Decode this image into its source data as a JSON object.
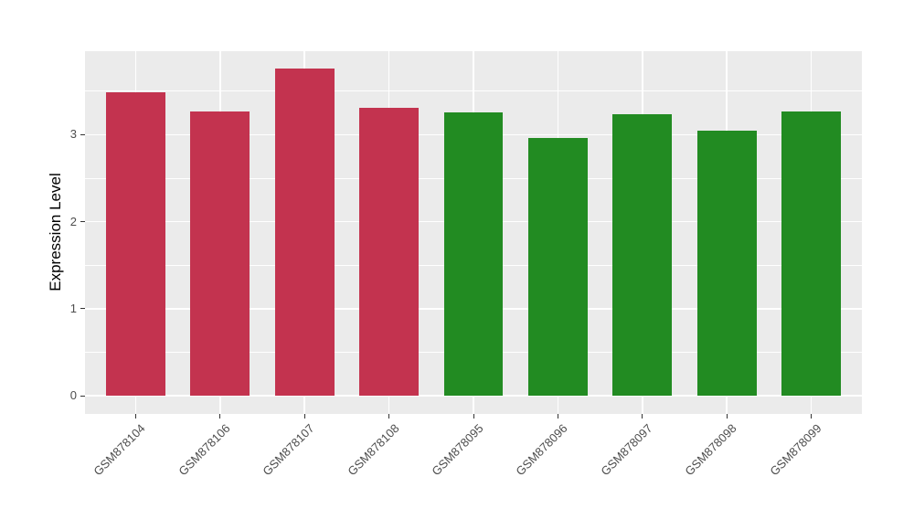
{
  "chart_data": {
    "type": "bar",
    "title": "",
    "ylabel": "Expression Level",
    "xlabel": "",
    "categories": [
      "GSM878104",
      "GSM878106",
      "GSM878107",
      "GSM878108",
      "GSM878095",
      "GSM878096",
      "GSM878097",
      "GSM878098",
      "GSM878099"
    ],
    "values": [
      3.49,
      3.27,
      3.76,
      3.31,
      3.26,
      2.96,
      3.23,
      3.05,
      3.27
    ],
    "bar_colors": [
      "#C3334F",
      "#C3334F",
      "#C3334F",
      "#C3334F",
      "#228B22",
      "#228B22",
      "#228B22",
      "#228B22",
      "#228B22"
    ],
    "y_tick_labels": [
      "0",
      "1",
      "2",
      "3"
    ],
    "y_tick_values": [
      0,
      1,
      2,
      3
    ],
    "y_minor_tick_values": [
      0.5,
      1.5,
      2.5,
      3.5
    ],
    "ylim": [
      -0.21,
      3.96
    ],
    "bar_width_fraction": 0.7,
    "x_label_angle_deg": 45,
    "grid": true,
    "legend_position": "none"
  },
  "style": {
    "background": "#FFFFFF",
    "panel_bg": "#EBEBEB",
    "grid_color": "#FFFFFF",
    "tick_mark_color": "#333333",
    "tick_label_color": "#4D4D4D",
    "axis_title_color": "#000000",
    "group_red": "#C3334F",
    "group_green": "#228B22"
  }
}
